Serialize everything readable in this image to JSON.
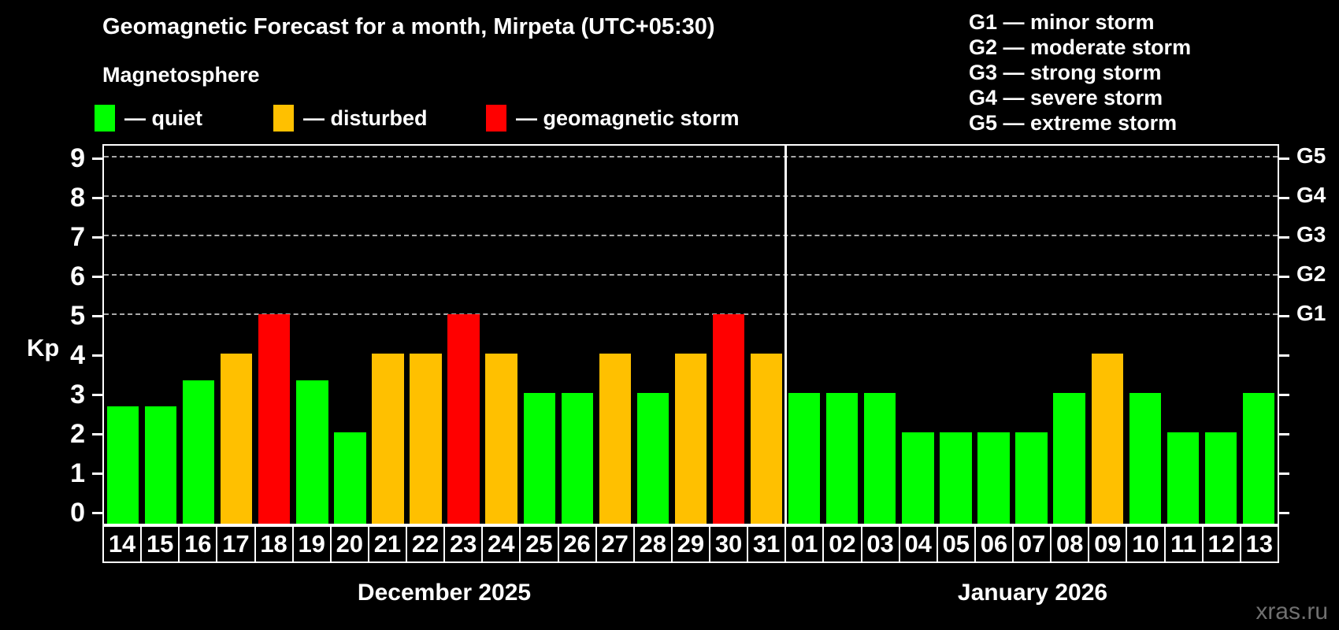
{
  "header": {
    "title": "Geomagnetic Forecast for a month, Mirpeta (UTC+05:30)",
    "subtitle": "Magnetosphere"
  },
  "legend": {
    "items": [
      {
        "key": "quiet",
        "label": "— quiet",
        "color": "#00ff00"
      },
      {
        "key": "disturbed",
        "label": "— disturbed",
        "color": "#ffc000"
      },
      {
        "key": "storm",
        "label": "— geomagnetic storm",
        "color": "#ff0000"
      }
    ]
  },
  "g_scale_legend": {
    "items": [
      {
        "label": "G1 — minor storm"
      },
      {
        "label": "G2 — moderate storm"
      },
      {
        "label": "G3 — strong storm"
      },
      {
        "label": "G4 — severe storm"
      },
      {
        "label": "G5 — extreme storm"
      }
    ]
  },
  "watermark": "xras.ru",
  "chart_data": {
    "type": "bar",
    "ylabel": "Kp",
    "ylim": [
      0,
      9
    ],
    "yticks": [
      0,
      1,
      2,
      3,
      4,
      5,
      6,
      7,
      8,
      9
    ],
    "gridlines_at": [
      5,
      6,
      7,
      8,
      9
    ],
    "right_axis_labels": [
      {
        "kp": 5,
        "label": "G1"
      },
      {
        "kp": 6,
        "label": "G2"
      },
      {
        "kp": 7,
        "label": "G3"
      },
      {
        "kp": 8,
        "label": "G4"
      },
      {
        "kp": 9,
        "label": "G5"
      }
    ],
    "months": [
      {
        "label": "December 2025",
        "days": 18
      },
      {
        "label": "January 2026",
        "days": 13
      }
    ],
    "categories": [
      "14",
      "15",
      "16",
      "17",
      "18",
      "19",
      "20",
      "21",
      "22",
      "23",
      "24",
      "25",
      "26",
      "27",
      "28",
      "29",
      "30",
      "31",
      "01",
      "02",
      "03",
      "04",
      "05",
      "06",
      "07",
      "08",
      "09",
      "10",
      "11",
      "12",
      "13"
    ],
    "values": [
      2.67,
      2.67,
      3.33,
      4,
      5,
      3.33,
      2,
      4,
      4,
      5,
      4,
      3,
      3,
      4,
      3,
      4,
      5,
      4,
      3,
      3,
      3,
      2,
      2,
      2,
      2,
      3,
      4,
      3,
      2,
      2,
      3
    ],
    "statuses": [
      "quiet",
      "quiet",
      "quiet",
      "disturbed",
      "storm",
      "quiet",
      "quiet",
      "disturbed",
      "disturbed",
      "storm",
      "disturbed",
      "quiet",
      "quiet",
      "disturbed",
      "quiet",
      "disturbed",
      "storm",
      "disturbed",
      "quiet",
      "quiet",
      "quiet",
      "quiet",
      "quiet",
      "quiet",
      "quiet",
      "quiet",
      "disturbed",
      "quiet",
      "quiet",
      "quiet",
      "quiet"
    ],
    "colors": {
      "quiet": "#00ff00",
      "disturbed": "#ffc000",
      "storm": "#ff0000"
    }
  }
}
